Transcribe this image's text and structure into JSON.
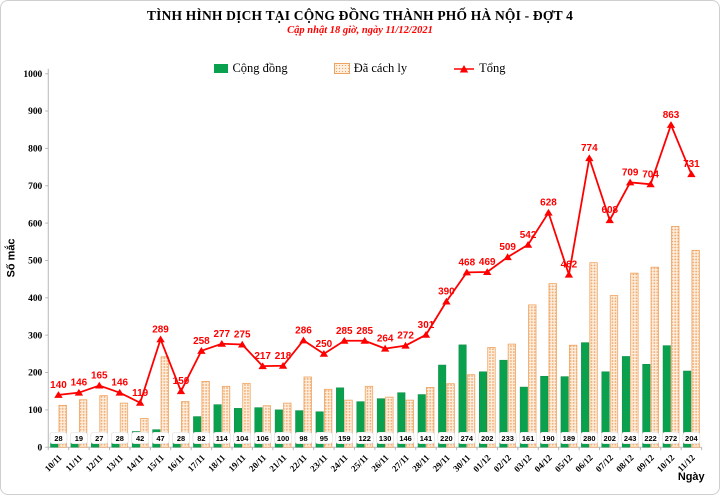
{
  "colors": {
    "accent_red": "#ff0000",
    "community_green": "#0aa14e",
    "community_green_border": "#0a8a43",
    "quarantine_tan_base": "#fdeedd",
    "quarantine_tan_dot": "#f0a366",
    "quarantine_tan_border": "#efa35f",
    "axis_gray": "#b7b7b7"
  },
  "chart_data": {
    "type": "bar",
    "title": "TÌNH HÌNH DỊCH TẠI CỘNG ĐỒNG THÀNH PHỐ HÀ NỘI - ĐỢT 4",
    "subtitle": "Cập nhật 18 giờ, ngày 11/12/2021",
    "categories": [
      "10/11",
      "11/11",
      "12/11",
      "13/11",
      "14/11",
      "15/11",
      "16/11",
      "17/11",
      "18/11",
      "19/11",
      "20/11",
      "21/11",
      "22/11",
      "23/11",
      "24/11",
      "25/11",
      "26/11",
      "27/11",
      "28/11",
      "29/11",
      "30/11",
      "01/12",
      "02/12",
      "03/12",
      "04/12",
      "05/12",
      "06/12",
      "07/12",
      "08/12",
      "09/12",
      "10/12",
      "11/12"
    ],
    "series": [
      {
        "name": "Cộng đồng",
        "type": "bar",
        "values": [
          28,
          19,
          27,
          28,
          42,
          47,
          28,
          82,
          114,
          104,
          106,
          100,
          98,
          95,
          159,
          122,
          130,
          146,
          141,
          220,
          274,
          202,
          233,
          161,
          190,
          189,
          280,
          202,
          243,
          222,
          272,
          204
        ]
      },
      {
        "name": "Đã cách ly",
        "type": "bar",
        "values": [
          112,
          127,
          138,
          118,
          77,
          242,
          122,
          176,
          163,
          171,
          111,
          118,
          188,
          155,
          126,
          163,
          134,
          126,
          160,
          170,
          194,
          267,
          276,
          381,
          438,
          273,
          494,
          406,
          466,
          482,
          591,
          527
        ]
      },
      {
        "name": "Tổng",
        "type": "line",
        "values": [
          140,
          146,
          165,
          146,
          119,
          289,
          150,
          258,
          277,
          275,
          217,
          218,
          286,
          250,
          285,
          285,
          264,
          272,
          301,
          390,
          468,
          469,
          509,
          542,
          628,
          462,
          774,
          608,
          709,
          704,
          863,
          731
        ]
      }
    ],
    "xlabel": "Ngày",
    "ylabel": "Số mắc",
    "ylim": [
      0,
      1000
    ],
    "ytick_step": 100,
    "grid": false,
    "legend_position": "top-center"
  }
}
